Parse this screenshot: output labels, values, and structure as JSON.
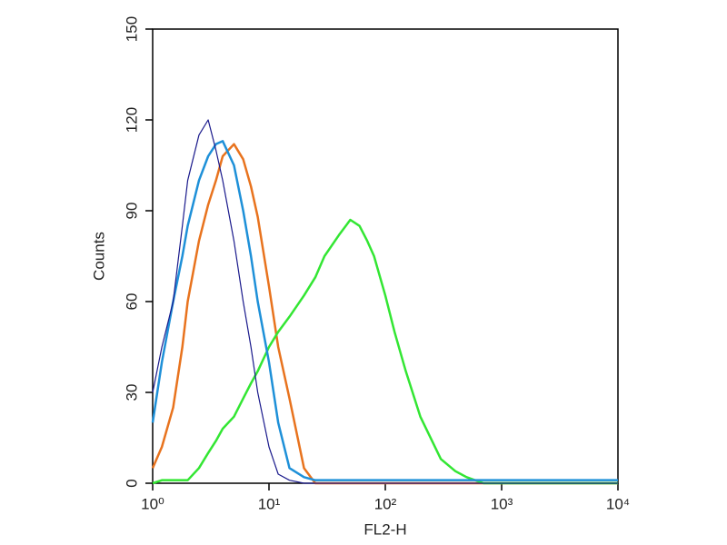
{
  "chart_data": {
    "type": "line",
    "xlabel": "FL2-H",
    "ylabel": "Counts",
    "log_x": true,
    "xlim": [
      1,
      10000
    ],
    "xticks": [
      {
        "value": 1,
        "label": "10⁰"
      },
      {
        "value": 10,
        "label": "10¹"
      },
      {
        "value": 100,
        "label": "10²"
      },
      {
        "value": 1000,
        "label": "10³"
      },
      {
        "value": 10000,
        "label": "10⁴"
      }
    ],
    "ylim": [
      0,
      150
    ],
    "yticks": [
      0,
      30,
      60,
      90,
      120,
      150
    ],
    "x": [
      1,
      1.2,
      1.5,
      1.8,
      2,
      2.5,
      3,
      3.5,
      4,
      5,
      6,
      7,
      8,
      10,
      12,
      15,
      20,
      25,
      30,
      40,
      50,
      60,
      70,
      80,
      100,
      120,
      150,
      200,
      300,
      400,
      500,
      700,
      1000,
      10000
    ],
    "series": [
      {
        "color": "#e8731e",
        "width": 2.5,
        "values": [
          5,
          12,
          25,
          45,
          60,
          80,
          92,
          100,
          108,
          112,
          107,
          98,
          88,
          65,
          45,
          28,
          5,
          0,
          0,
          0,
          0,
          0,
          0,
          0,
          0,
          0,
          0,
          0,
          0,
          0,
          0,
          0,
          0,
          0
        ]
      },
      {
        "color": "#33e633",
        "width": 2.5,
        "values": [
          0,
          1,
          1,
          1,
          1,
          5,
          10,
          14,
          18,
          22,
          28,
          33,
          37,
          45,
          50,
          55,
          62,
          68,
          75,
          82,
          87,
          85,
          80,
          75,
          62,
          50,
          37,
          22,
          8,
          4,
          2,
          0,
          0,
          0
        ]
      },
      {
        "color": "#1e90d8",
        "width": 2.5,
        "values": [
          20,
          40,
          60,
          75,
          85,
          100,
          108,
          112,
          113,
          105,
          90,
          75,
          60,
          40,
          20,
          5,
          2,
          1,
          1,
          1,
          1,
          1,
          1,
          1,
          1,
          1,
          1,
          1,
          1,
          1,
          1,
          1,
          1,
          1
        ]
      },
      {
        "color": "#1a1a8c",
        "width": 1.2,
        "values": [
          30,
          45,
          60,
          85,
          100,
          115,
          120,
          110,
          100,
          80,
          60,
          45,
          30,
          12,
          3,
          1,
          0,
          0,
          0,
          0,
          0,
          0,
          0,
          0,
          0,
          0,
          0,
          0,
          0,
          0,
          0,
          0,
          0,
          0
        ]
      }
    ]
  }
}
